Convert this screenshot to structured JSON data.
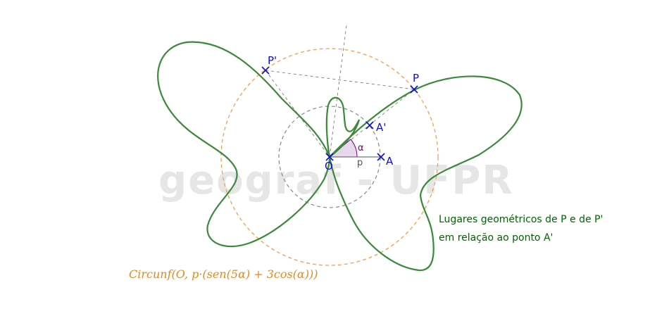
{
  "watermark": "geograf - UFPR",
  "points": {
    "O": "O",
    "A": "A",
    "A_prime": "A'",
    "P": "P",
    "P_prime": "P'"
  },
  "angle_label": "α",
  "segment_label": "p",
  "caption": {
    "line1": "Lugares geométricos de P e de P'",
    "line2": "em relação ao ponto A'"
  },
  "formula": "Circunf(O, p·(sen(5α) + 3cos(α)))",
  "colors": {
    "curve": "#3a8a3a",
    "circle": "#f0a050",
    "inner_circle": "#888888",
    "points": "#1010cc",
    "caption": "#006400",
    "formula": "#e08a20",
    "angle": "#800080",
    "watermark": "#e6e6e6"
  }
}
